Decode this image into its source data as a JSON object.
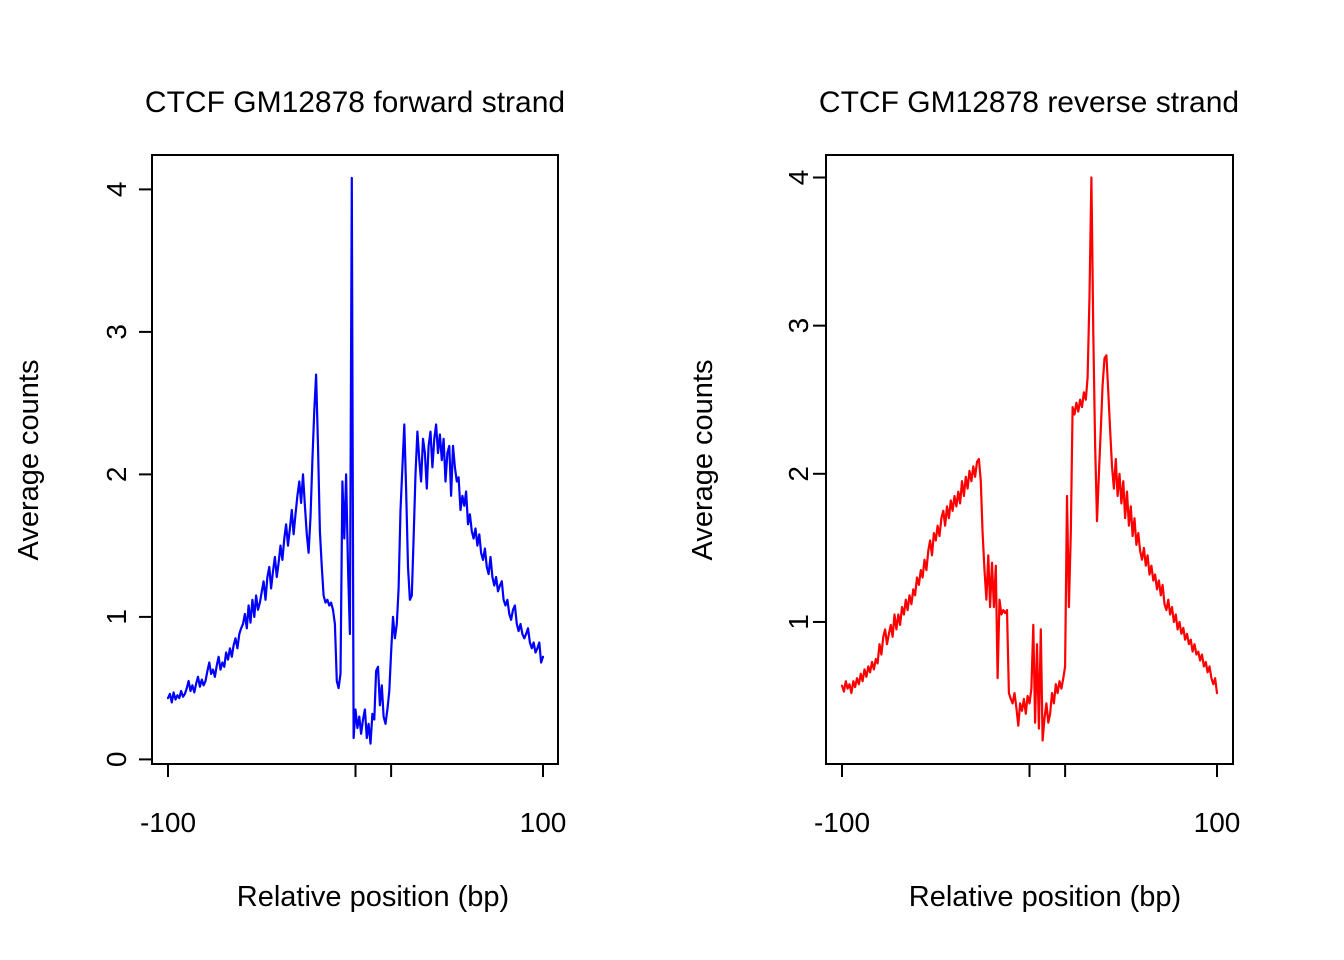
{
  "page": {
    "background": "#ffffff",
    "foreground": "#000000"
  },
  "chart_data": [
    {
      "type": "line",
      "title": "CTCF GM12878 forward strand",
      "xlabel": "Relative position (bp)",
      "ylabel": "Average counts",
      "line_color": "#0000ff",
      "xlim": [
        -100,
        100
      ],
      "ylim": [
        0.11,
        4.08
      ],
      "grid": false,
      "legend": "none",
      "x_ticks": [
        {
          "pos": -100,
          "label": "-100"
        },
        {
          "pos": 0,
          "label": ""
        },
        {
          "pos": 19,
          "label": ""
        },
        {
          "pos": 100,
          "label": "100"
        }
      ],
      "y_ticks": [
        {
          "pos": 0,
          "label": "0"
        },
        {
          "pos": 1,
          "label": "1"
        },
        {
          "pos": 2,
          "label": "2"
        },
        {
          "pos": 3,
          "label": "3"
        },
        {
          "pos": 4,
          "label": "4"
        }
      ],
      "x_start": -100,
      "x_step": 1,
      "values": [
        0.43,
        0.46,
        0.4,
        0.47,
        0.42,
        0.45,
        0.43,
        0.48,
        0.44,
        0.46,
        0.5,
        0.55,
        0.48,
        0.52,
        0.47,
        0.53,
        0.58,
        0.51,
        0.56,
        0.52,
        0.55,
        0.62,
        0.68,
        0.6,
        0.63,
        0.58,
        0.66,
        0.72,
        0.63,
        0.68,
        0.65,
        0.75,
        0.7,
        0.78,
        0.72,
        0.8,
        0.85,
        0.78,
        0.88,
        0.92,
        0.95,
        1.02,
        0.92,
        1.08,
        0.96,
        1.12,
        1.0,
        1.15,
        1.05,
        1.1,
        1.18,
        1.25,
        1.12,
        1.28,
        1.35,
        1.2,
        1.32,
        1.42,
        1.28,
        1.38,
        1.5,
        1.4,
        1.55,
        1.65,
        1.5,
        1.62,
        1.75,
        1.58,
        1.72,
        1.85,
        1.95,
        1.8,
        2.0,
        1.78,
        1.58,
        1.45,
        1.7,
        2.1,
        2.45,
        2.7,
        2.2,
        1.6,
        1.35,
        1.15,
        1.1,
        1.12,
        1.08,
        1.1,
        1.05,
        0.95,
        0.55,
        0.5,
        0.6,
        1.95,
        1.55,
        2.0,
        1.35,
        0.88,
        4.08,
        0.15,
        0.35,
        0.22,
        0.3,
        0.18,
        0.28,
        0.35,
        0.15,
        0.25,
        0.11,
        0.32,
        0.28,
        0.62,
        0.65,
        0.38,
        0.52,
        0.3,
        0.25,
        0.35,
        0.48,
        0.75,
        1.0,
        0.85,
        0.95,
        1.2,
        1.75,
        2.05,
        2.35,
        1.9,
        1.35,
        1.12,
        1.15,
        1.55,
        2.0,
        2.3,
        2.1,
        1.95,
        2.25,
        2.15,
        1.9,
        2.2,
        2.3,
        2.05,
        2.25,
        2.35,
        2.15,
        2.28,
        2.1,
        2.25,
        1.95,
        2.15,
        2.2,
        1.85,
        2.2,
        2.05,
        1.95,
        1.98,
        1.75,
        1.85,
        1.78,
        1.88,
        1.65,
        1.72,
        1.6,
        1.55,
        1.62,
        1.5,
        1.58,
        1.45,
        1.4,
        1.48,
        1.35,
        1.3,
        1.42,
        1.28,
        1.22,
        1.28,
        1.18,
        1.22,
        1.25,
        1.12,
        1.08,
        1.12,
        1.02,
        0.98,
        1.05,
        1.08,
        0.95,
        0.9,
        0.95,
        0.88,
        0.85,
        0.88,
        0.92,
        0.82,
        0.78,
        0.82,
        0.75,
        0.78,
        0.82,
        0.68,
        0.72
      ]
    },
    {
      "type": "line",
      "title": "CTCF GM12878 reverse strand",
      "xlabel": "Relative position (bp)",
      "ylabel": "Average counts",
      "line_color": "#ff0000",
      "xlim": [
        -100,
        100
      ],
      "ylim": [
        0.2,
        4.0
      ],
      "grid": false,
      "legend": "none",
      "x_ticks": [
        {
          "pos": -100,
          "label": "-100"
        },
        {
          "pos": 0,
          "label": ""
        },
        {
          "pos": 19,
          "label": ""
        },
        {
          "pos": 100,
          "label": "100"
        }
      ],
      "y_ticks": [
        {
          "pos": 1,
          "label": "1"
        },
        {
          "pos": 2,
          "label": "2"
        },
        {
          "pos": 3,
          "label": "3"
        },
        {
          "pos": 4,
          "label": "4"
        }
      ],
      "x_start": -100,
      "x_step": 1,
      "values": [
        0.57,
        0.53,
        0.6,
        0.55,
        0.58,
        0.52,
        0.6,
        0.56,
        0.62,
        0.58,
        0.65,
        0.6,
        0.68,
        0.63,
        0.7,
        0.66,
        0.73,
        0.68,
        0.75,
        0.72,
        0.85,
        0.78,
        0.9,
        0.95,
        0.85,
        0.92,
        0.98,
        0.9,
        1.05,
        0.95,
        1.05,
        0.98,
        1.1,
        1.05,
        1.15,
        1.08,
        1.18,
        1.12,
        1.22,
        1.18,
        1.3,
        1.25,
        1.35,
        1.3,
        1.42,
        1.35,
        1.48,
        1.55,
        1.45,
        1.6,
        1.55,
        1.65,
        1.58,
        1.7,
        1.75,
        1.65,
        1.78,
        1.7,
        1.82,
        1.75,
        1.85,
        1.78,
        1.88,
        1.8,
        1.95,
        1.85,
        1.98,
        1.9,
        2.02,
        1.95,
        2.05,
        1.98,
        2.08,
        2.1,
        1.95,
        1.6,
        1.35,
        1.15,
        1.45,
        1.1,
        1.4,
        1.1,
        1.38,
        0.62,
        1.15,
        1.05,
        1.08,
        1.06,
        1.08,
        0.52,
        0.48,
        0.45,
        0.52,
        0.42,
        0.3,
        0.45,
        0.4,
        0.48,
        0.38,
        0.5,
        0.45,
        0.55,
        0.98,
        0.32,
        0.85,
        0.28,
        0.95,
        0.2,
        0.35,
        0.45,
        0.32,
        0.38,
        0.52,
        0.45,
        0.58,
        0.52,
        0.6,
        0.55,
        0.62,
        0.7,
        1.85,
        1.1,
        1.6,
        2.45,
        2.4,
        2.48,
        2.42,
        2.5,
        2.45,
        2.55,
        2.5,
        2.65,
        3.2,
        4.0,
        2.95,
        2.2,
        1.68,
        2.0,
        2.3,
        2.6,
        2.78,
        2.8,
        2.55,
        2.3,
        2.05,
        1.9,
        2.1,
        1.85,
        2.0,
        1.8,
        1.95,
        1.7,
        1.88,
        1.65,
        1.78,
        1.58,
        1.7,
        1.52,
        1.6,
        1.48,
        1.42,
        1.5,
        1.38,
        1.45,
        1.32,
        1.38,
        1.28,
        1.32,
        1.22,
        1.28,
        1.18,
        1.25,
        1.12,
        1.08,
        1.15,
        1.05,
        1.1,
        1.0,
        1.05,
        0.95,
        1.0,
        0.92,
        0.96,
        0.88,
        0.92,
        0.85,
        0.88,
        0.8,
        0.85,
        0.78,
        0.8,
        0.74,
        0.78,
        0.7,
        0.73,
        0.66,
        0.7,
        0.62,
        0.58,
        0.62,
        0.52
      ]
    }
  ]
}
